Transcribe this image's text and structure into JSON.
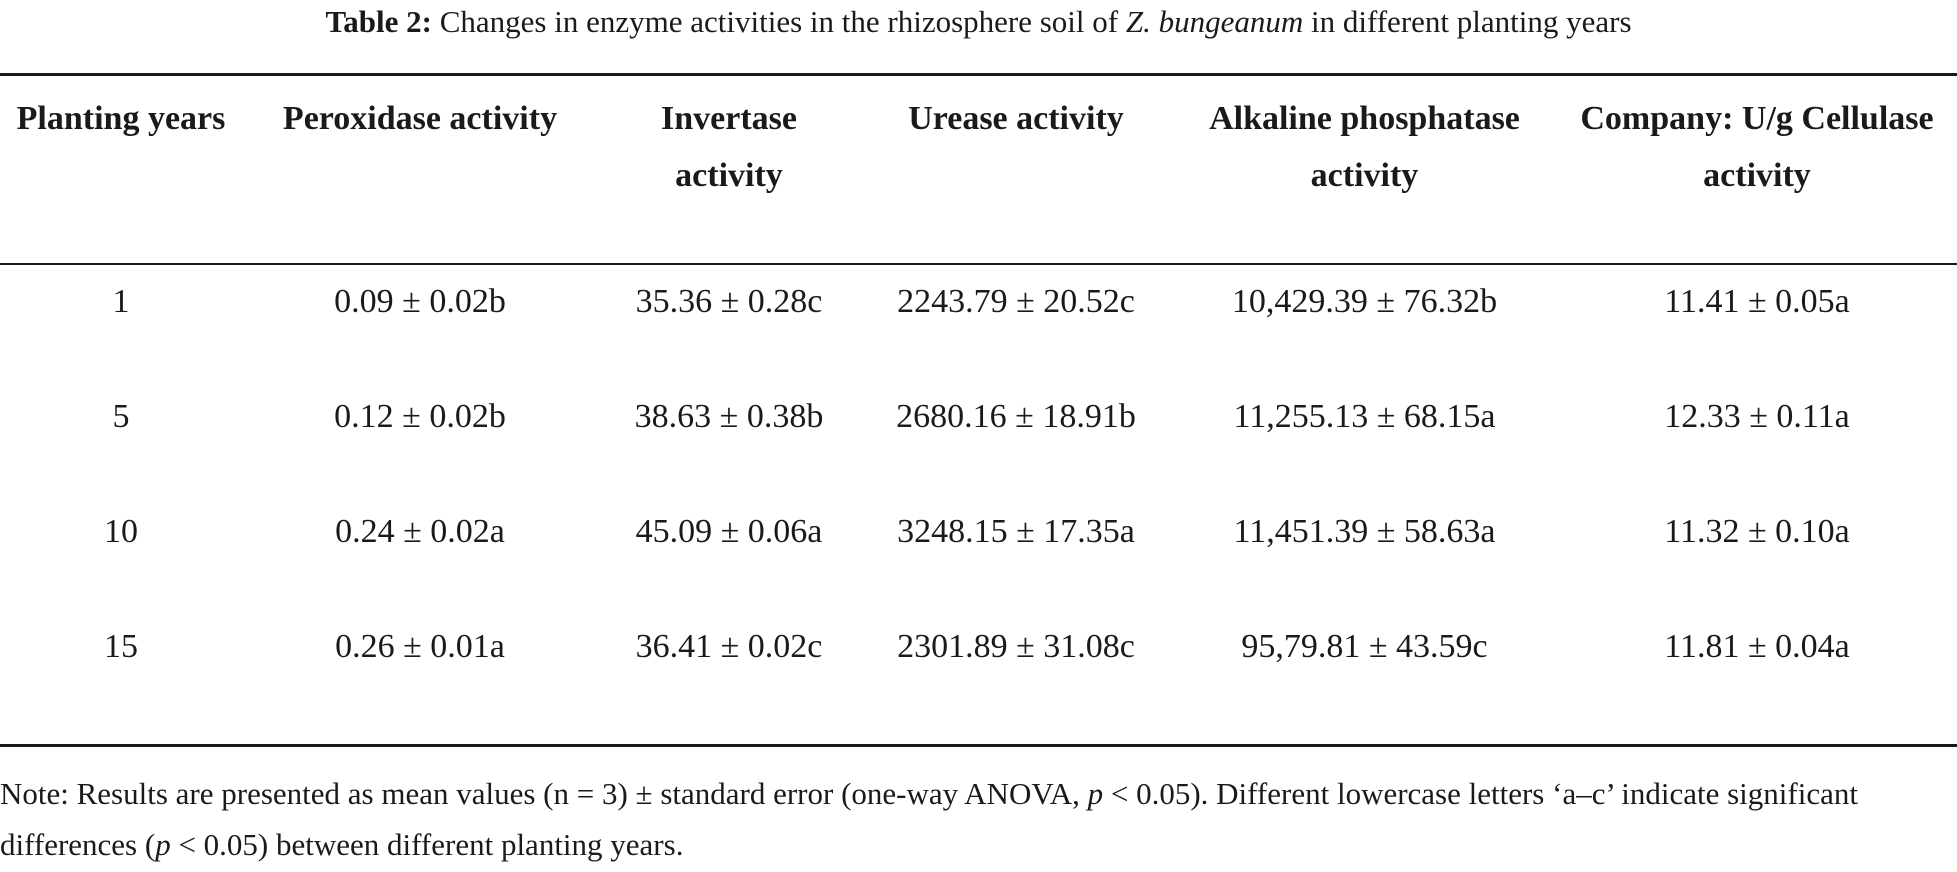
{
  "caption": {
    "label": "Table 2:",
    "text_before": " Changes in enzyme activities in the rhizosphere soil of ",
    "species": "Z. bungeanum",
    "text_after": " in different planting years"
  },
  "table": {
    "headers": [
      "Planting years",
      "Peroxidase activity",
      "Invertase activity",
      "Urease activity",
      "Alkaline phosphatase activity",
      "Company: U/g Cellulase activity"
    ],
    "rows": [
      [
        "1",
        "0.09 ± 0.02b",
        "35.36 ± 0.28c",
        "2243.79 ± 20.52c",
        "10,429.39 ± 76.32b",
        "11.41 ± 0.05a"
      ],
      [
        "5",
        "0.12 ± 0.02b",
        "38.63 ± 0.38b",
        "2680.16 ± 18.91b",
        "11,255.13 ± 68.15a",
        "12.33 ± 0.11a"
      ],
      [
        "10",
        "0.24 ± 0.02a",
        "45.09 ± 0.06a",
        "3248.15 ± 17.35a",
        "11,451.39 ± 58.63a",
        "11.32 ± 0.10a"
      ],
      [
        "15",
        "0.26 ± 0.01a",
        "36.41 ± 0.02c",
        "2301.89 ± 31.08c",
        "95,79.81 ± 43.59c",
        "11.81 ± 0.04a"
      ]
    ]
  },
  "note": {
    "part1": "Note: Results are presented as mean values (n = 3) ± standard error (one-way ANOVA, ",
    "p1": "p",
    "part2": " < 0.05). Different lowercase letters ‘a–c’ indicate significant differences (",
    "p2": "p",
    "part3": " < 0.05) between different planting years."
  }
}
